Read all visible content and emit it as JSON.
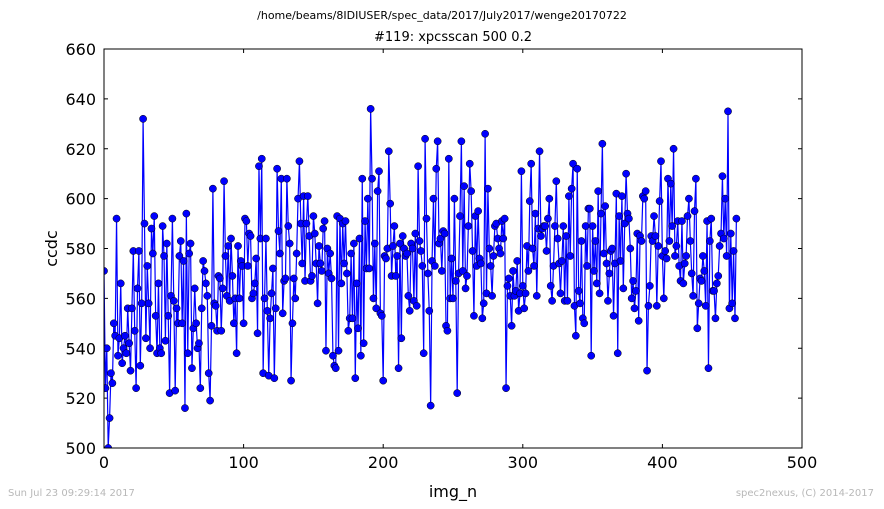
{
  "header": {
    "path": "/home/beams/8IDIUSER/spec_data/2017/July2017/wenge20170722",
    "title": "#119: xpcsscan 500 0.2"
  },
  "footer": {
    "timestamp": "Sun Jul 23 09:29:14 2017",
    "credit": "spec2nexus, (C) 2014-2017"
  },
  "colors": {
    "series": "#0000ff",
    "footer_text": "#b8b8b8"
  },
  "chart_data": {
    "type": "line",
    "title": "#119: xpcsscan 500 0.2",
    "xlabel": "img_n",
    "ylabel": "ccdc",
    "xlim": [
      0,
      500
    ],
    "ylim": [
      500,
      660
    ],
    "xticks": [
      0,
      100,
      200,
      300,
      400,
      500
    ],
    "yticks": [
      500,
      520,
      540,
      560,
      580,
      600,
      620,
      640,
      660
    ],
    "grid": false,
    "legend": "none",
    "marker": "circle",
    "series": [
      {
        "name": "",
        "y": [
          571,
          524,
          540,
          500,
          512,
          530,
          526,
          550,
          545,
          592,
          537,
          544,
          566,
          534,
          540,
          545,
          538,
          556,
          542,
          531,
          556,
          579,
          547,
          524,
          564,
          579,
          533,
          558,
          632,
          590,
          544,
          573,
          558,
          540,
          588,
          578,
          593,
          553,
          538,
          566,
          540,
          538,
          589,
          577,
          543,
          582,
          553,
          522,
          561,
          592,
          559,
          523,
          556,
          550,
          577,
          583,
          550,
          575,
          516,
          594,
          538,
          578,
          582,
          532,
          548,
          564,
          550,
          540,
          542,
          524,
          556,
          575,
          571,
          566,
          561,
          530,
          519,
          549,
          604,
          558,
          557,
          547,
          569,
          568,
          547,
          564,
          607,
          577,
          561,
          581,
          559,
          584,
          569,
          550,
          560,
          538,
          581,
          560,
          575,
          573,
          550,
          592,
          591,
          573,
          586,
          585,
          560,
          562,
          566,
          576,
          546,
          613,
          584,
          616,
          530,
          560,
          584,
          555,
          529,
          552,
          562,
          572,
          528,
          556,
          612,
          587,
          578,
          608,
          554,
          567,
          568,
          608,
          589,
          582,
          527,
          550,
          568,
          560,
          578,
          600,
          615,
          590,
          574,
          601,
          567,
          590,
          601,
          585,
          567,
          569,
          593,
          586,
          574,
          558,
          581,
          574,
          571,
          588,
          591,
          539,
          580,
          570,
          578,
          568,
          537,
          533,
          532,
          593,
          539,
          592,
          566,
          590,
          574,
          591,
          570,
          547,
          552,
          578,
          552,
          582,
          528,
          566,
          548,
          584,
          537,
          608,
          542,
          591,
          572,
          600,
          572,
          636,
          608,
          560,
          582,
          556,
          603,
          611,
          554,
          553,
          527,
          577,
          576,
          580,
          619,
          598,
          569,
          581,
          589,
          569,
          577,
          532,
          582,
          544,
          585,
          580,
          577,
          578,
          561,
          555,
          582,
          580,
          559,
          586,
          557,
          613,
          583,
          579,
          573,
          538,
          624,
          592,
          570,
          555,
          517,
          575,
          600,
          573,
          612,
          623,
          582,
          584,
          571,
          587,
          586,
          549,
          547,
          616,
          560,
          576,
          560,
          600,
          567,
          522,
          570,
          593,
          623,
          571,
          605,
          564,
          569,
          589,
          614,
          603,
          579,
          553,
          593,
          573,
          595,
          576,
          574,
          552,
          558,
          626,
          562,
          604,
          580,
          573,
          561,
          577,
          589,
          590,
          584,
          580,
          578,
          591,
          584,
          592,
          524,
          565,
          568,
          561,
          549,
          571,
          561,
          563,
          575,
          555,
          562,
          611,
          565,
          556,
          562,
          581,
          571,
          599,
          614,
          580,
          573,
          594,
          561,
          588,
          619,
          585,
          588,
          589,
          589,
          579,
          592,
          600,
          565,
          559,
          573,
          589,
          607,
          584,
          574,
          562,
          575,
          589,
          559,
          585,
          559,
          601,
          577,
          604,
          614,
          557,
          545,
          612,
          563,
          558,
          583,
          552,
          550,
          589,
          573,
          596,
          596,
          537,
          589,
          571,
          583,
          566,
          603,
          562,
          594,
          622,
          578,
          597,
          574,
          559,
          570,
          579,
          580,
          553,
          574,
          602,
          538,
          593,
          575,
          601,
          564,
          590,
          610,
          594,
          592,
          580,
          560,
          567,
          556,
          563,
          586,
          551,
          585,
          583,
          601,
          600,
          603,
          531,
          557,
          565,
          585,
          583,
          593,
          585,
          557,
          581,
          599,
          615,
          577,
          560,
          579,
          576,
          608,
          583,
          606,
          589,
          620,
          577,
          581,
          591,
          573,
          567,
          591,
          566,
          574,
          577,
          593,
          600,
          583,
          570,
          561,
          595,
          608,
          548,
          558,
          568,
          567,
          577,
          571,
          557,
          591,
          532,
          583,
          592,
          563,
          563,
          552,
          566,
          569,
          581,
          586,
          609,
          584,
          600,
          577,
          635,
          556,
          586,
          558,
          579,
          552,
          592
        ]
      }
    ]
  }
}
